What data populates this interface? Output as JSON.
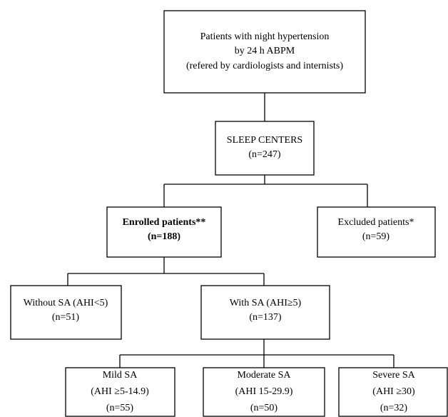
{
  "nodes": [
    {
      "lines": [
        "Patients with night hypertension",
        "by 24 h ABPM",
        "(refered by cardiologists and internists)"
      ]
    },
    {
      "lines": [
        "SLEEP CENTERS",
        "(n=247)"
      ]
    },
    {
      "lines": [
        "Enrolled patients**",
        "(n=188)"
      ]
    },
    {
      "lines": [
        "Excluded patients*",
        "(n=59)"
      ]
    },
    {
      "lines": [
        "Without SA (AHI<5)",
        "(n=51)"
      ]
    },
    {
      "lines": [
        "With SA (AHI≥5)",
        "(n=137)"
      ]
    },
    {
      "lines": [
        "Mild SA",
        "(AHI ≥5-14.9)",
        "(n=55)"
      ]
    },
    {
      "lines": [
        "Moderate SA",
        "(AHI 15-29.9)",
        "(n=50)"
      ]
    },
    {
      "lines": [
        "Severe SA",
        "(AHI ≥30)",
        "(n=32)"
      ]
    }
  ]
}
